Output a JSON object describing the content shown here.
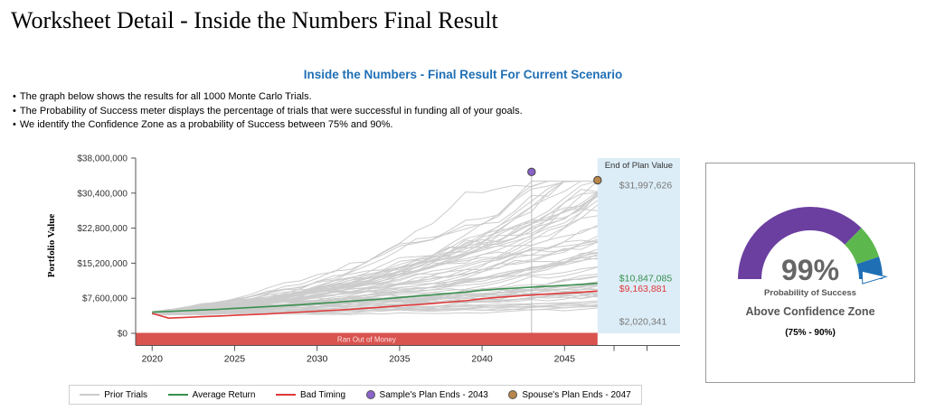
{
  "page": {
    "title": "Worksheet Detail - Inside the Numbers Final Result",
    "subtitle": "Inside the Numbers - Final Result For Current Scenario",
    "bullets": [
      "The graph below shows the results for all 1000 Monte Carlo Trials.",
      "The Probability of Success meter displays the percentage of trials that were successful in funding all of your goals.",
      "We identify the Confidence Zone as a probability of Success between 75% and 90%."
    ]
  },
  "chart_data": {
    "type": "line",
    "ylabel": "Portfolio Value",
    "ylim": [
      0,
      38000000
    ],
    "y_ticks": [
      "$0",
      "$7,600,000",
      "$15,200,000",
      "$22,800,000",
      "$30,400,000",
      "$38,000,000"
    ],
    "x_ticks": [
      "2020",
      "2025",
      "2030",
      "2035",
      "2040",
      "2045"
    ],
    "xlim": [
      2019,
      2052
    ],
    "x": [
      2020,
      2021,
      2022,
      2023,
      2024,
      2025,
      2026,
      2027,
      2028,
      2029,
      2030,
      2031,
      2032,
      2033,
      2034,
      2035,
      2036,
      2037,
      2038,
      2039,
      2040,
      2041,
      2042,
      2043,
      2044,
      2045,
      2046,
      2047
    ],
    "series": [
      {
        "name": "Average Return",
        "color": "#3a8f4e",
        "values": [
          4600000,
          4750000,
          4900000,
          5050000,
          5200000,
          5400000,
          5600000,
          5800000,
          6000000,
          6200000,
          6450000,
          6700000,
          6950000,
          7200000,
          7450000,
          7750000,
          8050000,
          8350000,
          8650000,
          8950000,
          9350000,
          9600000,
          9800000,
          10000000,
          10200000,
          10400000,
          10600000,
          10847085
        ]
      },
      {
        "name": "Bad Timing",
        "color": "#e03a3a",
        "values": [
          4300000,
          3300000,
          3450000,
          3600000,
          3750000,
          3900000,
          4050000,
          4200000,
          4400000,
          4600000,
          4800000,
          5000000,
          5200000,
          5450000,
          5700000,
          5950000,
          6200000,
          6450000,
          6750000,
          7050000,
          7500000,
          7800000,
          8050000,
          8300000,
          8500000,
          8700000,
          8900000,
          9163881
        ]
      }
    ],
    "prior_trials": {
      "name": "Prior Trials",
      "color": "#cccccc"
    },
    "ran_out_band": {
      "label": "Ran Out of Money",
      "color": "#d9534f",
      "x_end": 2047
    },
    "end_of_plan": {
      "label": "End of Plan Value",
      "x_start": 2047,
      "values": [
        "$31,997,626",
        "$10,847,085",
        "$9,163,881",
        "$2,020,341"
      ],
      "value_colors": [
        "#777777",
        "#3a8f4e",
        "#e03a3a",
        "#777777"
      ],
      "value_y": [
        31997626,
        10847085,
        9163881,
        2020341
      ]
    },
    "markers": [
      {
        "name": "Sample's Plan Ends - 2043",
        "x": 2043,
        "y": 35000000,
        "color": "#8a63c9"
      },
      {
        "name": "Spouse's Plan Ends - 2047",
        "x": 2047,
        "y": 33200000,
        "color": "#b8864a"
      }
    ]
  },
  "meter": {
    "value": 0.99,
    "percent_label": "99%",
    "label": "Probability of Success",
    "status": "Above Confidence Zone",
    "range": "(75% - 90%)",
    "colors": {
      "below": "#6b3fa0",
      "zone": "#5cb84c",
      "above": "#1f6fb5"
    }
  }
}
